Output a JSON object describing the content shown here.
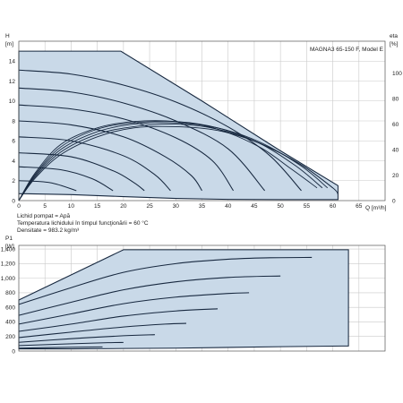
{
  "chart_data": [
    {
      "type": "line",
      "title": "MAGNA3 65-150 F, Model E",
      "ylabel": "H",
      "yunit": "[m]",
      "y2label": "eta",
      "y2unit": "[%]",
      "xlabel": "Q [m³/h]",
      "xlim": [
        0,
        70
      ],
      "ylim": [
        0,
        16
      ],
      "y2lim": [
        0,
        125
      ],
      "x_ticks": [
        "0",
        "5",
        "10",
        "15",
        "20",
        "25",
        "30",
        "35",
        "40",
        "45",
        "50",
        "55",
        "60",
        "65"
      ],
      "y_ticks": [
        "0",
        "2",
        "4",
        "6",
        "8",
        "10",
        "12",
        "14"
      ],
      "y2_ticks": [
        "0",
        "20",
        "40",
        "60",
        "80",
        "100"
      ],
      "grid": true,
      "envelope": {
        "max_curve": [
          [
            0,
            15
          ],
          [
            19.5,
            15
          ],
          [
            35,
            10
          ],
          [
            50,
            5
          ],
          [
            61,
            1.5
          ]
        ],
        "min_curve": [
          [
            0,
            0.7
          ],
          [
            10,
            0.6
          ],
          [
            20,
            0.4
          ],
          [
            30,
            0.22
          ],
          [
            40,
            0.12
          ],
          [
            50,
            0.1
          ],
          [
            61,
            0.1
          ]
        ]
      },
      "series": [
        {
          "values": [
            [
              0,
              13.1
            ],
            [
              10,
              12.7
            ],
            [
              20,
              11.6
            ],
            [
              30,
              9.9
            ],
            [
              40,
              7.4
            ],
            [
              48,
              4.5
            ],
            [
              54,
              1.0
            ]
          ]
        },
        {
          "values": [
            [
              0,
              11.3
            ],
            [
              10,
              10.9
            ],
            [
              20,
              9.8
            ],
            [
              30,
              8.0
            ],
            [
              40,
              5.2
            ],
            [
              47,
              1.0
            ]
          ]
        },
        {
          "values": [
            [
              0,
              9.6
            ],
            [
              10,
              9.2
            ],
            [
              20,
              8.2
            ],
            [
              30,
              6.3
            ],
            [
              37,
              4.0
            ],
            [
              41,
              1.0
            ]
          ]
        },
        {
          "values": [
            [
              0,
              8.0
            ],
            [
              10,
              7.6
            ],
            [
              20,
              6.4
            ],
            [
              28,
              4.4
            ],
            [
              33,
              2.5
            ],
            [
              35,
              1.0
            ]
          ]
        },
        {
          "values": [
            [
              0,
              6.4
            ],
            [
              10,
              6.0
            ],
            [
              20,
              4.5
            ],
            [
              26,
              2.6
            ],
            [
              29,
              1.0
            ]
          ]
        },
        {
          "values": [
            [
              0,
              4.8
            ],
            [
              10,
              4.4
            ],
            [
              18,
              3.0
            ],
            [
              22,
              1.8
            ],
            [
              24,
              1.0
            ]
          ]
        },
        {
          "values": [
            [
              0,
              3.4
            ],
            [
              8,
              3.1
            ],
            [
              14,
              2.2
            ],
            [
              18,
              1.0
            ]
          ]
        },
        {
          "values": [
            [
              0,
              2.0
            ],
            [
              6,
              1.8
            ],
            [
              11,
              1.0
            ]
          ]
        }
      ],
      "eta_series": [
        {
          "values": [
            [
              0,
              0
            ],
            [
              3,
              17
            ],
            [
              8,
              36
            ],
            [
              15,
              50
            ],
            [
              22,
              57
            ],
            [
              30,
              58
            ],
            [
              38,
              55
            ],
            [
              46,
              45
            ],
            [
              54,
              28
            ],
            [
              60,
              10
            ],
            [
              61,
              5
            ]
          ]
        },
        {
          "values": [
            [
              0,
              0
            ],
            [
              3,
              18
            ],
            [
              8,
              38
            ],
            [
              15,
              52
            ],
            [
              22,
              58
            ],
            [
              30,
              60
            ],
            [
              38,
              56
            ],
            [
              46,
              45
            ],
            [
              54,
              28
            ],
            [
              60,
              10
            ]
          ]
        },
        {
          "values": [
            [
              0,
              0
            ],
            [
              3,
              19
            ],
            [
              8,
              40
            ],
            [
              15,
              54
            ],
            [
              22,
              60
            ],
            [
              30,
              61
            ],
            [
              38,
              57
            ],
            [
              46,
              46
            ],
            [
              54,
              27
            ],
            [
              59,
              10
            ]
          ]
        },
        {
          "values": [
            [
              0,
              0
            ],
            [
              3,
              20
            ],
            [
              8,
              42
            ],
            [
              15,
              56
            ],
            [
              22,
              61
            ],
            [
              30,
              62
            ],
            [
              38,
              57
            ],
            [
              46,
              45
            ],
            [
              53,
              27
            ],
            [
              58,
              10
            ]
          ]
        },
        {
          "values": [
            [
              0,
              0
            ],
            [
              3,
              21
            ],
            [
              8,
              44
            ],
            [
              15,
              57
            ],
            [
              22,
              62
            ],
            [
              30,
              62
            ],
            [
              38,
              56
            ],
            [
              46,
              42
            ],
            [
              52,
              25
            ],
            [
              57,
              10
            ]
          ]
        }
      ],
      "fluid_notes": [
        "Lichid pompat = Apă",
        "Temperatura lichidului în timpul funcţionării = 60 °C",
        "Densitate = 983.2 kg/m³"
      ]
    },
    {
      "type": "line",
      "ylabel": "P1",
      "yunit": "[W]",
      "xlim": [
        0,
        70
      ],
      "ylim": [
        0,
        1450
      ],
      "x_ticks": [
        0,
        5,
        10,
        15,
        20,
        25,
        30,
        35,
        40,
        45,
        50,
        55,
        60,
        65
      ],
      "y_ticks": [
        "0",
        "200",
        "400",
        "600",
        "800",
        "1,000",
        "1,200",
        "1,400"
      ],
      "grid": true,
      "envelope": {
        "max_curve": [
          [
            0,
            700
          ],
          [
            20,
            1390
          ],
          [
            42,
            1390
          ],
          [
            63,
            1390
          ]
        ],
        "min_curve": [
          [
            0,
            30
          ],
          [
            10,
            30
          ],
          [
            20,
            35
          ],
          [
            30,
            40
          ],
          [
            40,
            50
          ],
          [
            50,
            60
          ],
          [
            63,
            70
          ]
        ]
      },
      "series": [
        {
          "values": [
            [
              0,
              640
            ],
            [
              10,
              870
            ],
            [
              20,
              1080
            ],
            [
              30,
              1200
            ],
            [
              40,
              1260
            ],
            [
              48,
              1280
            ],
            [
              56,
              1285
            ]
          ]
        },
        {
          "values": [
            [
              0,
              490
            ],
            [
              10,
              670
            ],
            [
              20,
              840
            ],
            [
              30,
              950
            ],
            [
              40,
              1010
            ],
            [
              50,
              1030
            ]
          ]
        },
        {
          "values": [
            [
              0,
              370
            ],
            [
              10,
              510
            ],
            [
              20,
              650
            ],
            [
              30,
              740
            ],
            [
              40,
              790
            ],
            [
              44,
              800
            ]
          ]
        },
        {
          "values": [
            [
              0,
              270
            ],
            [
              10,
              370
            ],
            [
              20,
              480
            ],
            [
              30,
              550
            ],
            [
              38,
              580
            ]
          ]
        },
        {
          "values": [
            [
              0,
              185
            ],
            [
              10,
              260
            ],
            [
              20,
              330
            ],
            [
              28,
              370
            ],
            [
              32,
              380
            ]
          ]
        },
        {
          "values": [
            [
              0,
              120
            ],
            [
              10,
              170
            ],
            [
              20,
              210
            ],
            [
              26,
              225
            ]
          ]
        },
        {
          "values": [
            [
              0,
              75
            ],
            [
              10,
              100
            ],
            [
              17,
              115
            ],
            [
              20,
              118
            ]
          ]
        },
        {
          "values": [
            [
              0,
              40
            ],
            [
              10,
              52
            ],
            [
              16,
              57
            ]
          ]
        }
      ]
    }
  ]
}
